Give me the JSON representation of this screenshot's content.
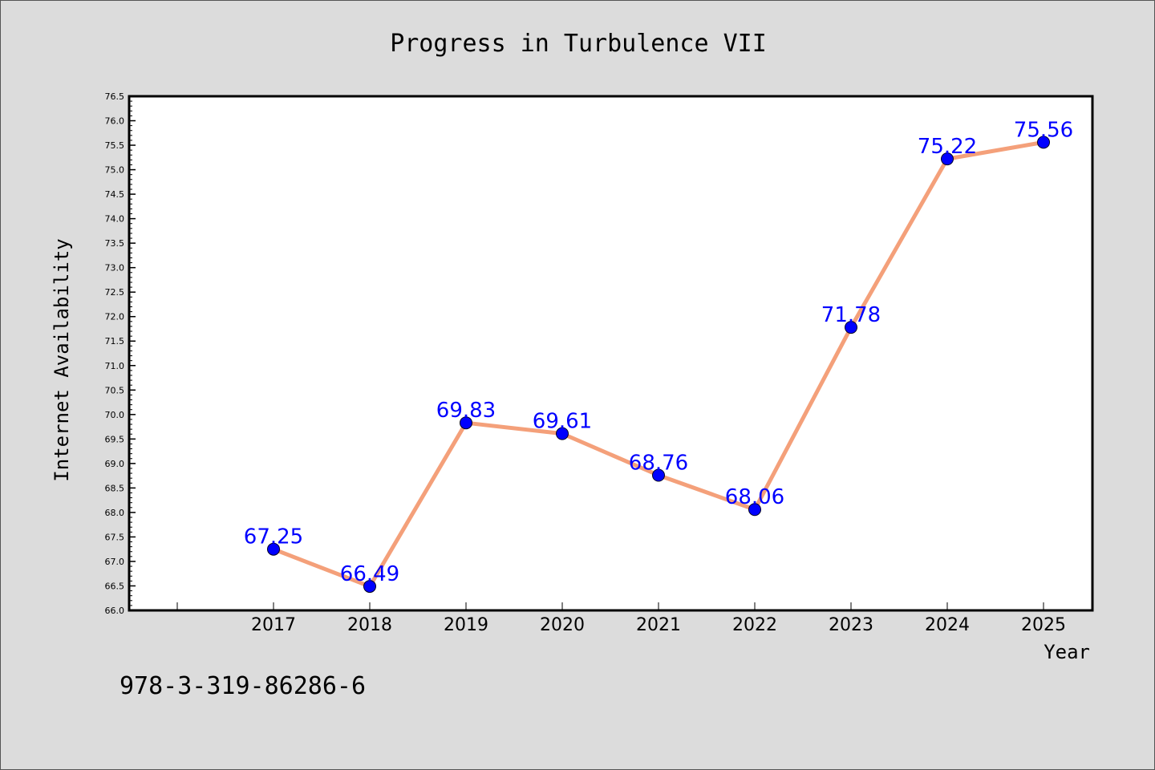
{
  "chart_data": {
    "type": "line",
    "title": "Progress in Turbulence VII",
    "xlabel": "Year",
    "ylabel": "Internet Availability",
    "categories": [
      "2017",
      "2018",
      "2019",
      "2020",
      "2021",
      "2022",
      "2023",
      "2024",
      "2025"
    ],
    "series": [
      {
        "values": [
          67.25,
          66.49,
          69.83,
          69.61,
          68.76,
          68.06,
          71.78,
          75.22,
          75.56
        ],
        "line_color": "#f4a07a",
        "marker_color": "#0000ff"
      }
    ],
    "data_labels": [
      "67.25",
      "66.49",
      "69.83",
      "69.61",
      "68.76",
      "68.06",
      "71.78",
      "75.22",
      "75.56"
    ],
    "ylim": [
      66.0,
      76.5
    ],
    "yticks": [
      "66.0",
      "66.5",
      "67.0",
      "67.5",
      "68.0",
      "68.5",
      "69.0",
      "69.5",
      "70.0",
      "70.5",
      "71.0",
      "71.5",
      "72.0",
      "72.5",
      "73.0",
      "73.5",
      "74.0",
      "74.5",
      "75.0",
      "75.5",
      "76.0",
      "76.5"
    ],
    "grid": false,
    "legend": "none"
  },
  "footer": {
    "isbn": "978-3-319-86286-6"
  },
  "colors": {
    "background": "#dcdcdc",
    "plot_area": "#ffffff",
    "line": "#f4a07a",
    "marker": "#0000ff",
    "data_label": "#0000ff"
  }
}
